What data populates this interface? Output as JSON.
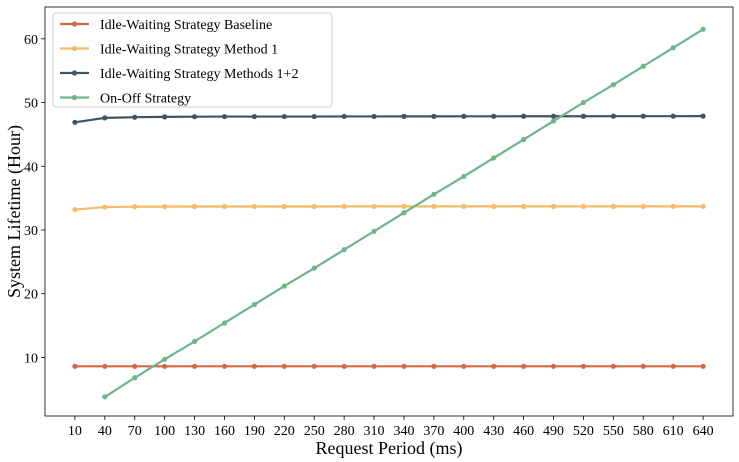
{
  "chart_data": {
    "type": "line",
    "title": "",
    "xlabel": "Request Period (ms)",
    "ylabel": "System Lifetime (Hour)",
    "x": [
      10,
      40,
      70,
      100,
      130,
      160,
      190,
      220,
      250,
      280,
      310,
      340,
      370,
      400,
      430,
      460,
      490,
      520,
      550,
      580,
      610,
      640
    ],
    "xlim": [
      -20,
      670
    ],
    "ylim": [
      0.8,
      65
    ],
    "yticks": [
      10,
      20,
      30,
      40,
      50,
      60
    ],
    "grid": false,
    "legend_position": "top-left",
    "series": [
      {
        "name": "Idle-Waiting Strategy Baseline",
        "color": "#d0694a",
        "x": [
          10,
          40,
          70,
          100,
          130,
          160,
          190,
          220,
          250,
          280,
          310,
          340,
          370,
          400,
          430,
          460,
          490,
          520,
          550,
          580,
          610,
          640
        ],
        "values": [
          8.6,
          8.6,
          8.6,
          8.6,
          8.6,
          8.6,
          8.6,
          8.6,
          8.6,
          8.6,
          8.6,
          8.6,
          8.6,
          8.6,
          8.6,
          8.6,
          8.6,
          8.6,
          8.6,
          8.6,
          8.6,
          8.6
        ]
      },
      {
        "name": "Idle-Waiting Strategy Method 1",
        "color": "#f4bb6a",
        "x": [
          10,
          40,
          70,
          100,
          130,
          160,
          190,
          220,
          250,
          280,
          310,
          340,
          370,
          400,
          430,
          460,
          490,
          520,
          550,
          580,
          610,
          640
        ],
        "values": [
          33.2,
          33.6,
          33.65,
          33.67,
          33.68,
          33.68,
          33.68,
          33.68,
          33.68,
          33.7,
          33.7,
          33.7,
          33.7,
          33.7,
          33.7,
          33.7,
          33.7,
          33.7,
          33.7,
          33.7,
          33.7,
          33.7
        ]
      },
      {
        "name": "Idle-Waiting Strategy Methods 1+2",
        "color": "#3f5564",
        "x": [
          10,
          40,
          70,
          100,
          130,
          160,
          190,
          220,
          250,
          280,
          310,
          340,
          370,
          400,
          430,
          460,
          490,
          520,
          550,
          580,
          610,
          640
        ],
        "values": [
          46.9,
          47.6,
          47.7,
          47.75,
          47.78,
          47.8,
          47.8,
          47.8,
          47.8,
          47.82,
          47.82,
          47.83,
          47.83,
          47.84,
          47.84,
          47.85,
          47.85,
          47.85,
          47.86,
          47.86,
          47.86,
          47.87
        ]
      },
      {
        "name": "On-Off Strategy",
        "color": "#6db68a",
        "x": [
          40,
          70,
          100,
          130,
          160,
          190,
          220,
          250,
          280,
          310,
          340,
          370,
          400,
          430,
          460,
          490,
          520,
          550,
          580,
          610,
          640
        ],
        "values": [
          3.8,
          6.8,
          9.7,
          12.5,
          15.4,
          18.3,
          21.2,
          24.0,
          26.9,
          29.8,
          32.7,
          35.6,
          38.4,
          41.3,
          44.2,
          47.1,
          50.0,
          52.8,
          55.7,
          58.6,
          61.5
        ]
      }
    ]
  }
}
